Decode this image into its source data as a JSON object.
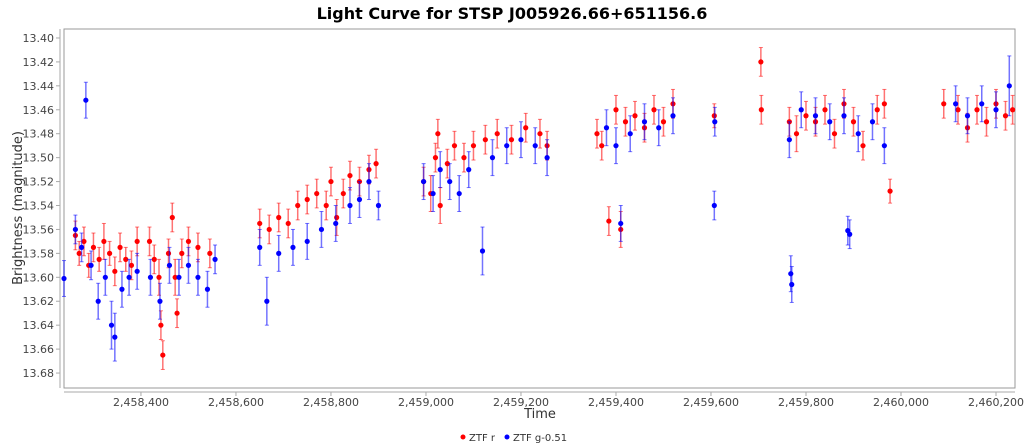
{
  "chart_data": {
    "type": "scatter",
    "title": "Light Curve for STSP J005926.66+651156.6",
    "xlabel": "Time",
    "ylabel": "Brightness (magnitude)",
    "xlim": [
      2458238,
      2460240
    ],
    "ylim": [
      13.3925,
      13.6925
    ],
    "y_inverted": true,
    "grid": false,
    "legend_position": "bottom-center",
    "x_ticks": [
      2458400,
      2458600,
      2458800,
      2459000,
      2459200,
      2459400,
      2459600,
      2459800,
      2460000,
      2460200
    ],
    "x_tick_labels": [
      "2,458,400",
      "2,458,600",
      "2,458,800",
      "2,459,000",
      "2,459,200",
      "2,459,400",
      "2,459,600",
      "2,459,800",
      "2,460,000",
      "2,460,200"
    ],
    "y_ticks": [
      13.4,
      13.42,
      13.44,
      13.46,
      13.48,
      13.5,
      13.52,
      13.54,
      13.56,
      13.58,
      13.6,
      13.62,
      13.64,
      13.66,
      13.68
    ],
    "y_tick_labels": [
      "13.40",
      "13.42",
      "13.44",
      "13.46",
      "13.48",
      "13.50",
      "13.52",
      "13.54",
      "13.56",
      "13.58",
      "13.60",
      "13.62",
      "13.64",
      "13.66",
      "13.68"
    ],
    "series": [
      {
        "name": "ZTF r",
        "color": "#ff0000",
        "points": [
          [
            2458262,
            13.565,
            0.012
          ],
          [
            2458270,
            13.58,
            0.01
          ],
          [
            2458280,
            13.57,
            0.012
          ],
          [
            2458290,
            13.59,
            0.01
          ],
          [
            2458300,
            13.575,
            0.012
          ],
          [
            2458312,
            13.585,
            0.01
          ],
          [
            2458322,
            13.57,
            0.015
          ],
          [
            2458334,
            13.58,
            0.01
          ],
          [
            2458345,
            13.595,
            0.012
          ],
          [
            2458356,
            13.575,
            0.012
          ],
          [
            2458368,
            13.585,
            0.01
          ],
          [
            2458380,
            13.59,
            0.012
          ],
          [
            2458392,
            13.57,
            0.012
          ],
          [
            2458418,
            13.57,
            0.012
          ],
          [
            2458428,
            13.585,
            0.012
          ],
          [
            2458438,
            13.6,
            0.015
          ],
          [
            2458442,
            13.64,
            0.012
          ],
          [
            2458446,
            13.665,
            0.012
          ],
          [
            2458458,
            13.58,
            0.012
          ],
          [
            2458466,
            13.55,
            0.012
          ],
          [
            2458472,
            13.6,
            0.015
          ],
          [
            2458476,
            13.63,
            0.012
          ],
          [
            2458486,
            13.58,
            0.012
          ],
          [
            2458500,
            13.57,
            0.012
          ],
          [
            2458520,
            13.575,
            0.012
          ],
          [
            2458545,
            13.58,
            0.012
          ],
          [
            2458650,
            13.555,
            0.012
          ],
          [
            2458670,
            13.56,
            0.012
          ],
          [
            2458690,
            13.55,
            0.012
          ],
          [
            2458710,
            13.555,
            0.012
          ],
          [
            2458730,
            13.54,
            0.012
          ],
          [
            2458750,
            13.535,
            0.012
          ],
          [
            2458770,
            13.53,
            0.012
          ],
          [
            2458790,
            13.54,
            0.012
          ],
          [
            2458800,
            13.52,
            0.012
          ],
          [
            2458812,
            13.55,
            0.015
          ],
          [
            2458826,
            13.53,
            0.012
          ],
          [
            2458840,
            13.515,
            0.012
          ],
          [
            2458860,
            13.52,
            0.012
          ],
          [
            2458880,
            13.51,
            0.012
          ],
          [
            2458895,
            13.505,
            0.012
          ],
          [
            2458995,
            13.52,
            0.012
          ],
          [
            2459010,
            13.53,
            0.015
          ],
          [
            2459020,
            13.5,
            0.012
          ],
          [
            2459025,
            13.48,
            0.012
          ],
          [
            2459030,
            13.54,
            0.015
          ],
          [
            2459045,
            13.505,
            0.012
          ],
          [
            2459060,
            13.49,
            0.012
          ],
          [
            2459080,
            13.5,
            0.012
          ],
          [
            2459100,
            13.49,
            0.012
          ],
          [
            2459125,
            13.485,
            0.012
          ],
          [
            2459150,
            13.48,
            0.012
          ],
          [
            2459180,
            13.485,
            0.012
          ],
          [
            2459210,
            13.475,
            0.012
          ],
          [
            2459240,
            13.48,
            0.012
          ],
          [
            2459255,
            13.49,
            0.012
          ],
          [
            2459360,
            13.48,
            0.012
          ],
          [
            2459370,
            13.49,
            0.012
          ],
          [
            2459385,
            13.553,
            0.012
          ],
          [
            2459400,
            13.46,
            0.012
          ],
          [
            2459410,
            13.56,
            0.015
          ],
          [
            2459420,
            13.47,
            0.012
          ],
          [
            2459440,
            13.465,
            0.012
          ],
          [
            2459460,
            13.475,
            0.012
          ],
          [
            2459480,
            13.46,
            0.012
          ],
          [
            2459500,
            13.47,
            0.012
          ],
          [
            2459520,
            13.455,
            0.012
          ],
          [
            2459607,
            13.465,
            0.01
          ],
          [
            2459705,
            13.42,
            0.012
          ],
          [
            2459706,
            13.46,
            0.012
          ],
          [
            2459765,
            13.47,
            0.012
          ],
          [
            2459780,
            13.48,
            0.015
          ],
          [
            2459800,
            13.465,
            0.012
          ],
          [
            2459820,
            13.47,
            0.012
          ],
          [
            2459840,
            13.46,
            0.012
          ],
          [
            2459860,
            13.48,
            0.012
          ],
          [
            2459880,
            13.455,
            0.012
          ],
          [
            2459900,
            13.47,
            0.012
          ],
          [
            2459920,
            13.49,
            0.012
          ],
          [
            2459950,
            13.46,
            0.012
          ],
          [
            2459965,
            13.455,
            0.012
          ],
          [
            2459977,
            13.528,
            0.01
          ],
          [
            2460090,
            13.455,
            0.012
          ],
          [
            2460120,
            13.46,
            0.012
          ],
          [
            2460140,
            13.475,
            0.012
          ],
          [
            2460160,
            13.46,
            0.012
          ],
          [
            2460180,
            13.47,
            0.012
          ],
          [
            2460200,
            13.455,
            0.012
          ],
          [
            2460220,
            13.465,
            0.012
          ],
          [
            2460235,
            13.46,
            0.012
          ]
        ]
      },
      {
        "name": "ZTF g-0.51",
        "color": "#0000ff",
        "points": [
          [
            2458238,
            13.601,
            0.015
          ],
          [
            2458262,
            13.56,
            0.012
          ],
          [
            2458275,
            13.575,
            0.012
          ],
          [
            2458284,
            13.452,
            0.015
          ],
          [
            2458295,
            13.59,
            0.012
          ],
          [
            2458310,
            13.62,
            0.015
          ],
          [
            2458325,
            13.6,
            0.015
          ],
          [
            2458338,
            13.64,
            0.02
          ],
          [
            2458345,
            13.65,
            0.02
          ],
          [
            2458360,
            13.61,
            0.015
          ],
          [
            2458375,
            13.6,
            0.015
          ],
          [
            2458392,
            13.595,
            0.015
          ],
          [
            2458420,
            13.6,
            0.015
          ],
          [
            2458440,
            13.62,
            0.015
          ],
          [
            2458460,
            13.59,
            0.015
          ],
          [
            2458480,
            13.6,
            0.015
          ],
          [
            2458500,
            13.59,
            0.015
          ],
          [
            2458520,
            13.6,
            0.015
          ],
          [
            2458540,
            13.61,
            0.015
          ],
          [
            2458556,
            13.585,
            0.012
          ],
          [
            2458650,
            13.575,
            0.015
          ],
          [
            2458665,
            13.62,
            0.02
          ],
          [
            2458690,
            13.58,
            0.015
          ],
          [
            2458720,
            13.575,
            0.015
          ],
          [
            2458750,
            13.57,
            0.015
          ],
          [
            2458780,
            13.56,
            0.015
          ],
          [
            2458810,
            13.555,
            0.015
          ],
          [
            2458840,
            13.54,
            0.015
          ],
          [
            2458860,
            13.535,
            0.015
          ],
          [
            2458880,
            13.52,
            0.015
          ],
          [
            2458900,
            13.54,
            0.012
          ],
          [
            2458995,
            13.52,
            0.015
          ],
          [
            2459015,
            13.53,
            0.015
          ],
          [
            2459030,
            13.51,
            0.015
          ],
          [
            2459050,
            13.52,
            0.015
          ],
          [
            2459070,
            13.53,
            0.015
          ],
          [
            2459090,
            13.51,
            0.015
          ],
          [
            2459119,
            13.578,
            0.02
          ],
          [
            2459140,
            13.5,
            0.015
          ],
          [
            2459170,
            13.49,
            0.015
          ],
          [
            2459200,
            13.485,
            0.015
          ],
          [
            2459230,
            13.49,
            0.015
          ],
          [
            2459255,
            13.5,
            0.015
          ],
          [
            2459380,
            13.475,
            0.015
          ],
          [
            2459400,
            13.49,
            0.015
          ],
          [
            2459410,
            13.555,
            0.015
          ],
          [
            2459430,
            13.48,
            0.015
          ],
          [
            2459460,
            13.47,
            0.015
          ],
          [
            2459490,
            13.475,
            0.015
          ],
          [
            2459520,
            13.465,
            0.015
          ],
          [
            2459607,
            13.54,
            0.012
          ],
          [
            2459608,
            13.47,
            0.012
          ],
          [
            2459765,
            13.485,
            0.015
          ],
          [
            2459768,
            13.597,
            0.015
          ],
          [
            2459770,
            13.606,
            0.015
          ],
          [
            2459790,
            13.46,
            0.015
          ],
          [
            2459820,
            13.465,
            0.015
          ],
          [
            2459850,
            13.47,
            0.015
          ],
          [
            2459880,
            13.465,
            0.015
          ],
          [
            2459888,
            13.561,
            0.012
          ],
          [
            2459892,
            13.564,
            0.012
          ],
          [
            2459910,
            13.48,
            0.015
          ],
          [
            2459940,
            13.47,
            0.015
          ],
          [
            2459965,
            13.49,
            0.015
          ],
          [
            2460115,
            13.455,
            0.015
          ],
          [
            2460140,
            13.465,
            0.015
          ],
          [
            2460170,
            13.455,
            0.015
          ],
          [
            2460200,
            13.46,
            0.015
          ],
          [
            2460228,
            13.44,
            0.025
          ]
        ]
      }
    ]
  }
}
